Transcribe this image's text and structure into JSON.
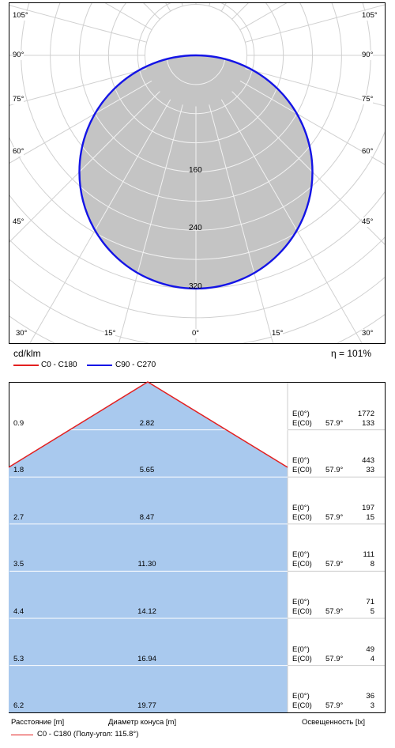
{
  "colors": {
    "c0_c180": "#e32020",
    "c90_c270": "#1414e6",
    "polar_fill": "#c4c4c4",
    "cone_fill": "#a9c9ee",
    "grid": "#d0d0d0",
    "frame": "#000000"
  },
  "polar": {
    "unit": "cd/klm",
    "efficiency": "η = 101%",
    "radial_labels": [
      "160",
      "240",
      "320"
    ],
    "angle_labels_left": [
      "105°",
      "90°",
      "75°",
      "60°",
      "45°",
      "30°"
    ],
    "angle_labels_right": [
      "105°",
      "90°",
      "75°",
      "60°",
      "45°",
      "30°"
    ],
    "angle_labels_bottom": [
      "15°",
      "0°",
      "15°"
    ],
    "legend": [
      {
        "label": "C0 - C180",
        "color": "#e32020"
      },
      {
        "label": "C90 - C270",
        "color": "#1414e6"
      }
    ]
  },
  "chart_data": [
    {
      "type": "polar",
      "unit": "cd/klm",
      "radial_ticks": [
        160,
        240,
        320
      ],
      "angle_ticks_deg": [
        0,
        15,
        30,
        45,
        60,
        75,
        90,
        105
      ],
      "series": [
        {
          "name": "C0 - C180",
          "color": "#e32020",
          "shape": "circle",
          "peak_cd_klm": 320
        },
        {
          "name": "C90 - C270",
          "color": "#1414e6",
          "shape": "circle",
          "peak_cd_klm": 320
        }
      ],
      "efficiency": "η = 101%"
    },
    {
      "type": "table",
      "title": "cone diagram",
      "columns": [
        "Расстояние [m]",
        "Диаметр конуса [m]",
        "Освещенность [lx]"
      ],
      "half_angle_label": "C0 - C180 (Полу-угол: 115.8°)",
      "rows": [
        {
          "distance": "0.9",
          "diameter": "2.82",
          "e0": "1772",
          "ec0": "133",
          "angle": "57.9°"
        },
        {
          "distance": "1.8",
          "diameter": "5.65",
          "e0": "443",
          "ec0": "33",
          "angle": "57.9°"
        },
        {
          "distance": "2.7",
          "diameter": "8.47",
          "e0": "197",
          "ec0": "15",
          "angle": "57.9°"
        },
        {
          "distance": "3.5",
          "diameter": "11.30",
          "e0": "111",
          "ec0": "8",
          "angle": "57.9°"
        },
        {
          "distance": "4.4",
          "diameter": "14.12",
          "e0": "71",
          "ec0": "5",
          "angle": "57.9°"
        },
        {
          "distance": "5.3",
          "diameter": "16.94",
          "e0": "49",
          "ec0": "4",
          "angle": "57.9°"
        },
        {
          "distance": "6.2",
          "diameter": "19.77",
          "e0": "36",
          "ec0": "3",
          "angle": "57.9°"
        }
      ]
    }
  ],
  "cone": {
    "e0_label": "E(0°)",
    "ec0_label": "E(C0)",
    "footer_distance": "Расстояние [m]",
    "footer_diameter": "Диаметр конуса [m]",
    "footer_illuminance": "Освещенность [lx]",
    "legend_label": "C0 - C180 (Полу-угол: 115.8°)"
  }
}
